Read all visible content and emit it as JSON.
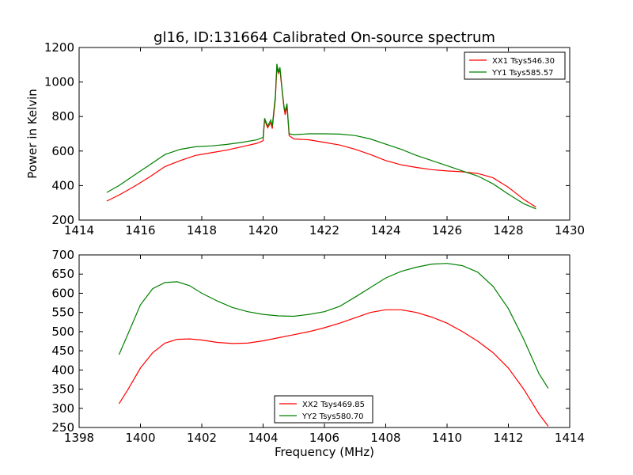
{
  "title": "gl16, ID:131664 Calibrated On-source spectrum",
  "colors": {
    "red": "#ff0000",
    "green": "#008000"
  },
  "chart_data": [
    {
      "type": "line",
      "ylabel": "Power in Kelvin",
      "xlabel": "",
      "xlim": [
        1414,
        1430
      ],
      "ylim": [
        200,
        1200
      ],
      "xticks": [
        1414,
        1416,
        1418,
        1420,
        1422,
        1424,
        1426,
        1428,
        1430
      ],
      "yticks": [
        200,
        400,
        600,
        800,
        1000,
        1200
      ],
      "legend": "top-right",
      "series": [
        {
          "name": "XX1 Tsys546.30",
          "color": "#ff0000",
          "points": [
            [
              1414.9,
              310
            ],
            [
              1415.3,
              345
            ],
            [
              1415.8,
              395
            ],
            [
              1416.3,
              450
            ],
            [
              1416.8,
              510
            ],
            [
              1417.3,
              545
            ],
            [
              1417.8,
              575
            ],
            [
              1418.3,
              590
            ],
            [
              1418.8,
              605
            ],
            [
              1419.3,
              625
            ],
            [
              1419.8,
              645
            ],
            [
              1420.0,
              660
            ],
            [
              1420.05,
              780
            ],
            [
              1420.15,
              735
            ],
            [
              1420.25,
              765
            ],
            [
              1420.3,
              730
            ],
            [
              1420.4,
              900
            ],
            [
              1420.45,
              1080
            ],
            [
              1420.5,
              1050
            ],
            [
              1420.55,
              1070
            ],
            [
              1420.62,
              950
            ],
            [
              1420.68,
              850
            ],
            [
              1420.72,
              810
            ],
            [
              1420.78,
              860
            ],
            [
              1420.85,
              690
            ],
            [
              1421.0,
              670
            ],
            [
              1421.5,
              665
            ],
            [
              1422.0,
              650
            ],
            [
              1422.5,
              635
            ],
            [
              1423.0,
              610
            ],
            [
              1423.5,
              580
            ],
            [
              1424.0,
              545
            ],
            [
              1424.5,
              520
            ],
            [
              1425.0,
              505
            ],
            [
              1425.5,
              492
            ],
            [
              1426.0,
              485
            ],
            [
              1426.5,
              480
            ],
            [
              1427.0,
              470
            ],
            [
              1427.5,
              445
            ],
            [
              1428.0,
              390
            ],
            [
              1428.5,
              320
            ],
            [
              1428.9,
              275
            ]
          ]
        },
        {
          "name": "YY1 Tsys585.57",
          "color": "#008000",
          "points": [
            [
              1414.9,
              360
            ],
            [
              1415.3,
              400
            ],
            [
              1415.8,
              460
            ],
            [
              1416.3,
              520
            ],
            [
              1416.8,
              580
            ],
            [
              1417.3,
              610
            ],
            [
              1417.8,
              625
            ],
            [
              1418.3,
              630
            ],
            [
              1418.8,
              638
            ],
            [
              1419.3,
              650
            ],
            [
              1419.8,
              665
            ],
            [
              1420.0,
              680
            ],
            [
              1420.05,
              790
            ],
            [
              1420.15,
              745
            ],
            [
              1420.25,
              780
            ],
            [
              1420.3,
              745
            ],
            [
              1420.4,
              920
            ],
            [
              1420.45,
              1105
            ],
            [
              1420.5,
              1060
            ],
            [
              1420.55,
              1085
            ],
            [
              1420.62,
              960
            ],
            [
              1420.68,
              860
            ],
            [
              1420.72,
              830
            ],
            [
              1420.78,
              875
            ],
            [
              1420.85,
              700
            ],
            [
              1421.0,
              695
            ],
            [
              1421.5,
              700
            ],
            [
              1422.0,
              700
            ],
            [
              1422.5,
              698
            ],
            [
              1423.0,
              690
            ],
            [
              1423.5,
              670
            ],
            [
              1424.0,
              640
            ],
            [
              1424.5,
              610
            ],
            [
              1425.0,
              575
            ],
            [
              1425.5,
              545
            ],
            [
              1426.0,
              515
            ],
            [
              1426.5,
              485
            ],
            [
              1427.0,
              455
            ],
            [
              1427.5,
              410
            ],
            [
              1428.0,
              350
            ],
            [
              1428.5,
              295
            ],
            [
              1428.9,
              265
            ]
          ]
        }
      ]
    },
    {
      "type": "line",
      "ylabel": "",
      "xlabel": "Frequency (MHz)",
      "xlim": [
        1398,
        1414
      ],
      "ylim": [
        250,
        700
      ],
      "xticks": [
        1398,
        1400,
        1402,
        1404,
        1406,
        1408,
        1410,
        1412,
        1414
      ],
      "yticks": [
        250,
        300,
        350,
        400,
        450,
        500,
        550,
        600,
        650,
        700
      ],
      "legend": "bottom-center",
      "series": [
        {
          "name": "XX2 Tsys469.85",
          "color": "#ff0000",
          "points": [
            [
              1399.3,
              312
            ],
            [
              1399.6,
              350
            ],
            [
              1400.0,
              405
            ],
            [
              1400.4,
              445
            ],
            [
              1400.8,
              470
            ],
            [
              1401.2,
              480
            ],
            [
              1401.6,
              481
            ],
            [
              1402.0,
              478
            ],
            [
              1402.5,
              472
            ],
            [
              1403.0,
              469
            ],
            [
              1403.5,
              470
            ],
            [
              1404.0,
              476
            ],
            [
              1404.5,
              484
            ],
            [
              1405.0,
              492
            ],
            [
              1405.5,
              500
            ],
            [
              1406.0,
              510
            ],
            [
              1406.5,
              522
            ],
            [
              1407.0,
              536
            ],
            [
              1407.5,
              550
            ],
            [
              1408.0,
              557
            ],
            [
              1408.5,
              557
            ],
            [
              1409.0,
              550
            ],
            [
              1409.5,
              538
            ],
            [
              1410.0,
              522
            ],
            [
              1410.5,
              500
            ],
            [
              1411.0,
              475
            ],
            [
              1411.5,
              445
            ],
            [
              1412.0,
              405
            ],
            [
              1412.5,
              350
            ],
            [
              1413.0,
              285
            ],
            [
              1413.3,
              253
            ]
          ]
        },
        {
          "name": "YY2 Tsys580.70",
          "color": "#008000",
          "points": [
            [
              1399.3,
              440
            ],
            [
              1399.6,
              495
            ],
            [
              1400.0,
              570
            ],
            [
              1400.4,
              612
            ],
            [
              1400.8,
              628
            ],
            [
              1401.2,
              630
            ],
            [
              1401.6,
              620
            ],
            [
              1402.0,
              600
            ],
            [
              1402.5,
              580
            ],
            [
              1403.0,
              563
            ],
            [
              1403.5,
              552
            ],
            [
              1404.0,
              545
            ],
            [
              1404.5,
              541
            ],
            [
              1405.0,
              540
            ],
            [
              1405.5,
              545
            ],
            [
              1406.0,
              552
            ],
            [
              1406.5,
              566
            ],
            [
              1407.0,
              590
            ],
            [
              1407.5,
              615
            ],
            [
              1408.0,
              640
            ],
            [
              1408.5,
              657
            ],
            [
              1409.0,
              668
            ],
            [
              1409.5,
              676
            ],
            [
              1410.0,
              678
            ],
            [
              1410.5,
              672
            ],
            [
              1411.0,
              655
            ],
            [
              1411.5,
              618
            ],
            [
              1412.0,
              560
            ],
            [
              1412.5,
              480
            ],
            [
              1413.0,
              390
            ],
            [
              1413.3,
              352
            ]
          ]
        }
      ]
    }
  ]
}
